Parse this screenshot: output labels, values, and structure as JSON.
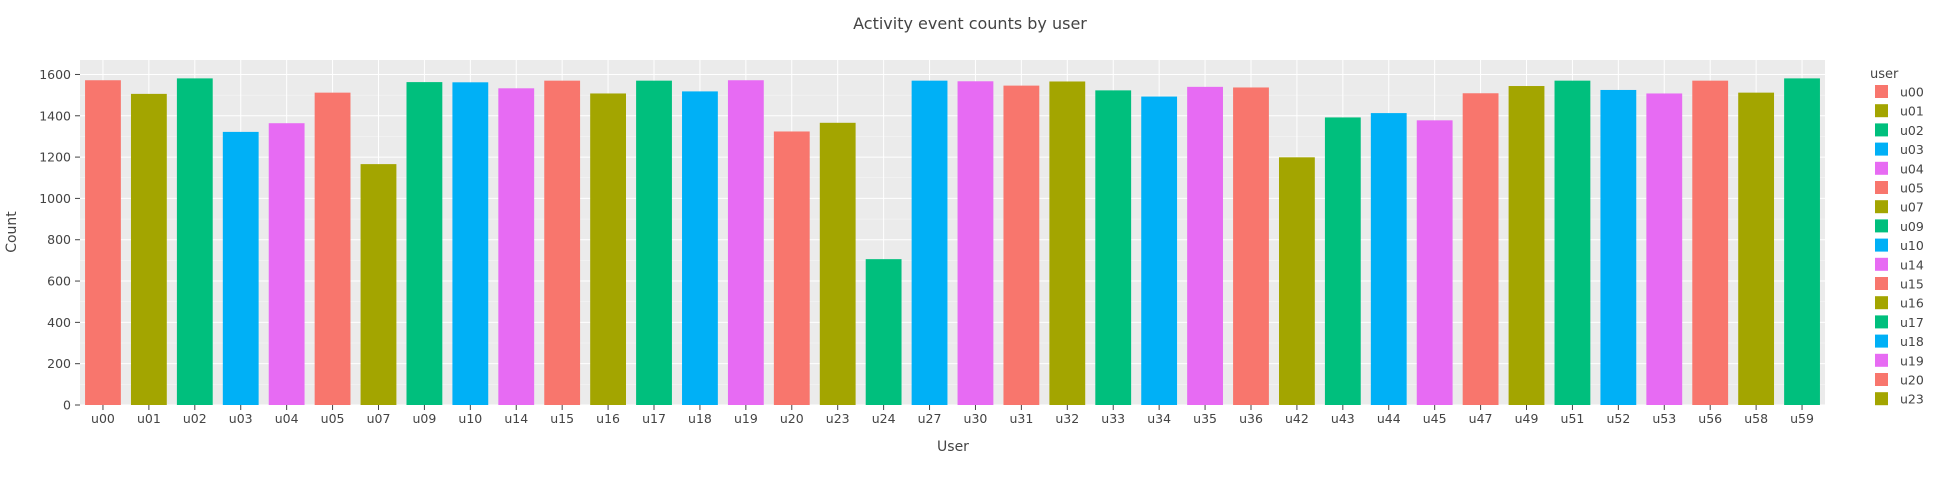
{
  "chart_data": {
    "type": "bar",
    "title": "Activity event counts by user",
    "xlabel": "User",
    "ylabel": "Count",
    "ylim": [
      0,
      1670
    ],
    "yticks": [
      0,
      200,
      400,
      600,
      800,
      1000,
      1200,
      1400,
      1600
    ],
    "grid": true,
    "legend_title": "user",
    "legend_position": "right",
    "categories": [
      "u00",
      "u01",
      "u02",
      "u03",
      "u04",
      "u05",
      "u07",
      "u09",
      "u10",
      "u14",
      "u15",
      "u16",
      "u17",
      "u18",
      "u19",
      "u20",
      "u23",
      "u24",
      "u27",
      "u30",
      "u31",
      "u32",
      "u33",
      "u34",
      "u35",
      "u36",
      "u42",
      "u43",
      "u44",
      "u45",
      "u47",
      "u49",
      "u51",
      "u52",
      "u53",
      "u56",
      "u58",
      "u59"
    ],
    "values": [
      1572,
      1506,
      1581,
      1322,
      1364,
      1512,
      1166,
      1563,
      1562,
      1533,
      1570,
      1508,
      1570,
      1518,
      1572,
      1324,
      1366,
      706,
      1570,
      1567,
      1546,
      1566,
      1523,
      1493,
      1540,
      1537,
      1199,
      1392,
      1413,
      1378,
      1509,
      1544,
      1570,
      1525,
      1508,
      1570,
      1512,
      1581
    ],
    "legend_entries": [
      "u00",
      "u01",
      "u02",
      "u03",
      "u04",
      "u05",
      "u07",
      "u09",
      "u10",
      "u14",
      "u15",
      "u16",
      "u17",
      "u18",
      "u19",
      "u20",
      "u23"
    ],
    "palette": [
      "#F8766D",
      "#A3A500",
      "#00BF7D",
      "#00B0F6",
      "#E76BF3"
    ],
    "plot_background": "#EBEBEB",
    "grid_color": "#FFFFFF"
  }
}
